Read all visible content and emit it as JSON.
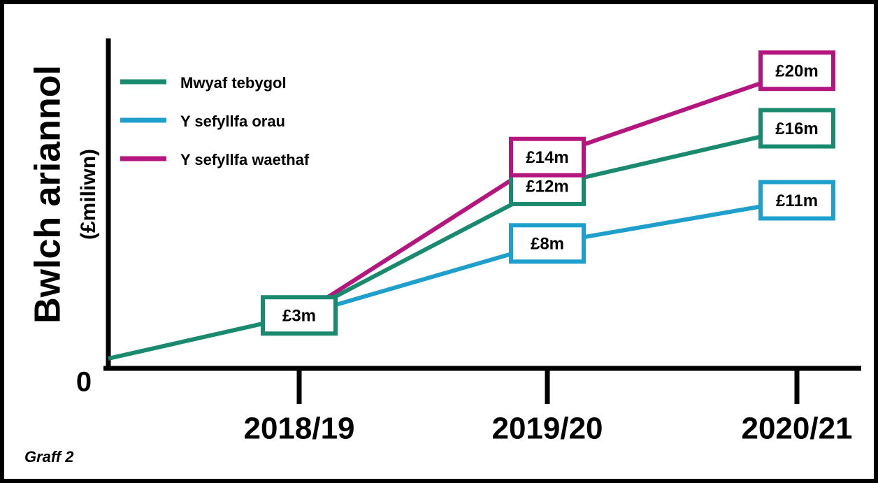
{
  "chart_data": {
    "type": "line",
    "footnote": "Graff 2",
    "y_axis_label": "Bwlch ariannol",
    "y_axis_sublabel": "(£miliwn)",
    "categories": [
      null,
      "2018/19",
      "2019/20",
      "2020/21"
    ],
    "series": [
      {
        "name": "Mwyaf tebygol",
        "color": "#1a8a6e",
        "values": [
          0,
          3,
          12,
          16
        ],
        "value_labels": [
          null,
          "£3m",
          "£12m",
          "£16m"
        ]
      },
      {
        "name": "Y sefyllfa orau",
        "color": "#1fa0cc",
        "values": [
          null,
          3,
          8,
          11
        ],
        "value_labels": [
          null,
          null,
          "£8m",
          "£11m"
        ]
      },
      {
        "name": "Y sefyllfa waethaf",
        "color": "#b5157e",
        "values": [
          null,
          3,
          14,
          20
        ],
        "value_labels": [
          null,
          null,
          "£14m",
          "£20m"
        ]
      }
    ],
    "ylim": [
      0,
      22
    ],
    "yticks": [
      0
    ],
    "legend": "top-left"
  }
}
